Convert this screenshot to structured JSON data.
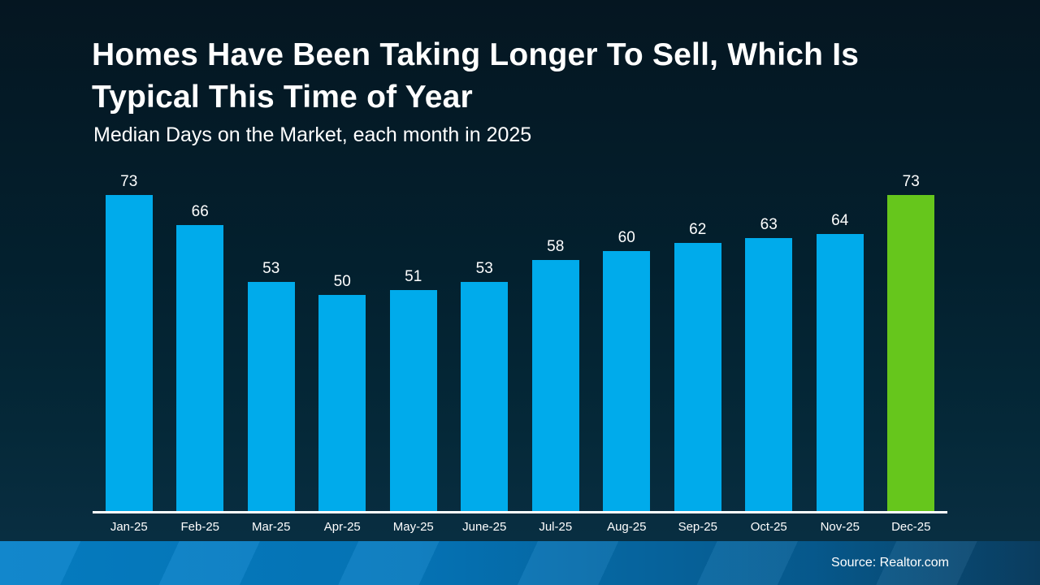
{
  "slide": {
    "title_lines": [
      "Homes Have Been Taking Longer To Sell, Which Is",
      "Typical This Time of Year"
    ],
    "subtitle": "Median Days on the Market, each month in 2025",
    "source": "Source: Realtor.com"
  },
  "colors": {
    "bar": "#00ABEB",
    "highlight_bar": "#66C61C",
    "axis": "#FFFFFF",
    "background_top": "#051621",
    "background_bottom": "#0A3045",
    "footer_left": "#0581C9",
    "footer_right": "#0A3F63",
    "text": "#FFFFFF"
  },
  "chart_data": {
    "type": "bar",
    "title": "Homes Have Been Taking Longer To Sell, Which Is Typical This Time of Year",
    "subtitle": "Median Days on the Market, each month in 2025",
    "categories": [
      "Jan-25",
      "Feb-25",
      "Mar-25",
      "Apr-25",
      "May-25",
      "June-25",
      "Jul-25",
      "Aug-25",
      "Sep-25",
      "Oct-25",
      "Nov-25",
      "Dec-25"
    ],
    "values": [
      73,
      66,
      53,
      50,
      51,
      53,
      58,
      60,
      62,
      63,
      64,
      73
    ],
    "highlight_index": 11,
    "xlabel": "",
    "ylabel": "Median Days on the Market",
    "ylim": [
      0,
      73
    ],
    "gridlines": false,
    "legend": false,
    "data_labels": true,
    "source": "Source: Realtor.com"
  }
}
